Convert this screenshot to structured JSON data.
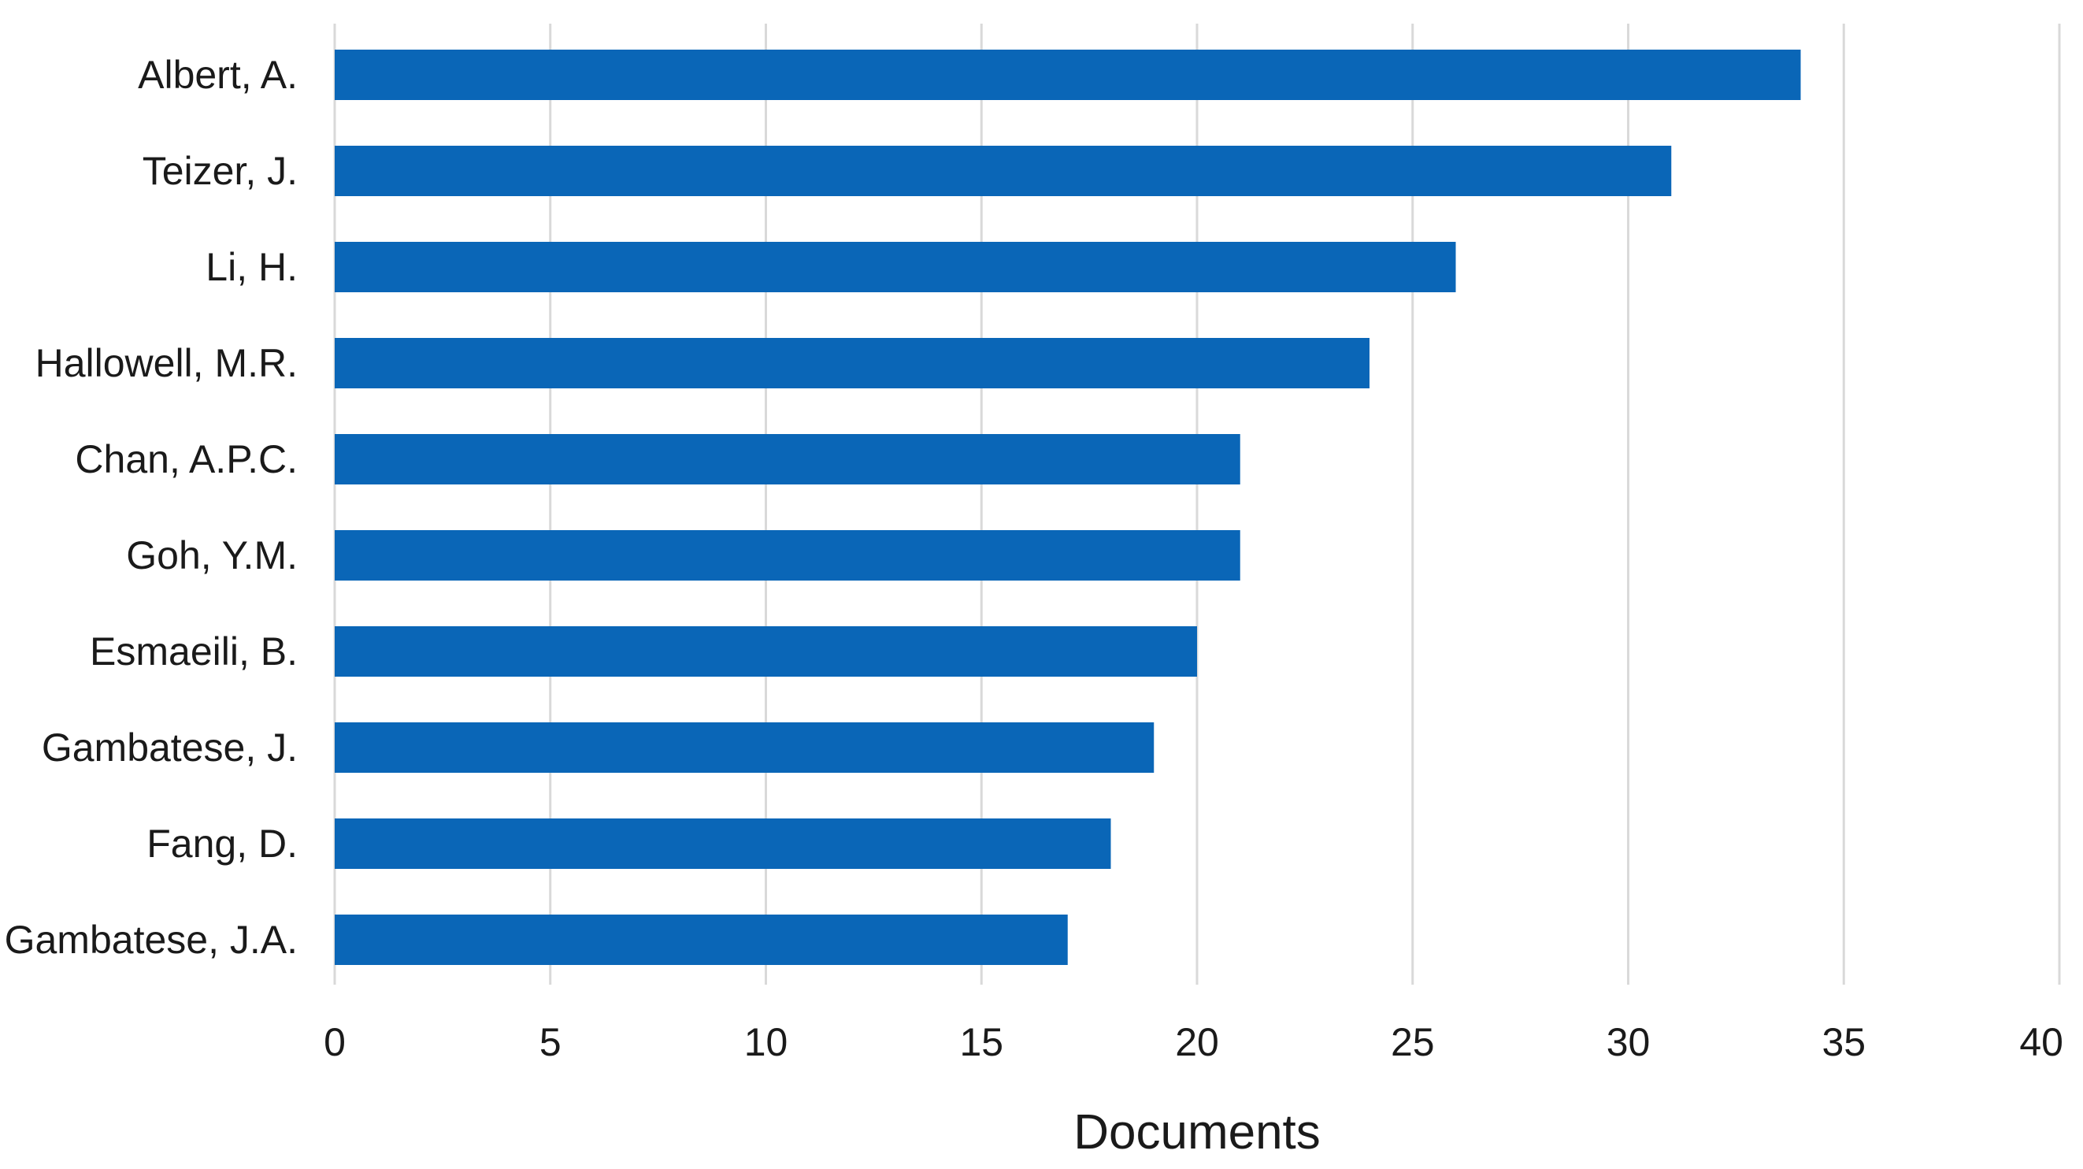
{
  "chart_data": {
    "type": "bar",
    "orientation": "horizontal",
    "categories": [
      "Albert, A.",
      "Teizer, J.",
      "Li, H.",
      "Hallowell, M.R.",
      "Chan, A.P.C.",
      "Goh, Y.M.",
      "Esmaeili, B.",
      "Gambatese, J.",
      "Fang, D.",
      "Gambatese, J.A."
    ],
    "values": [
      34,
      31,
      26,
      24,
      21,
      21,
      20,
      19,
      18,
      17
    ],
    "title": "",
    "xlabel": "Documents",
    "ylabel": "",
    "xlim": [
      0,
      40
    ],
    "xticks": [
      0,
      5,
      10,
      15,
      20,
      25,
      30,
      35,
      40
    ],
    "grid": "vertical",
    "legend": "none",
    "bar_color": "#0a66b7"
  }
}
